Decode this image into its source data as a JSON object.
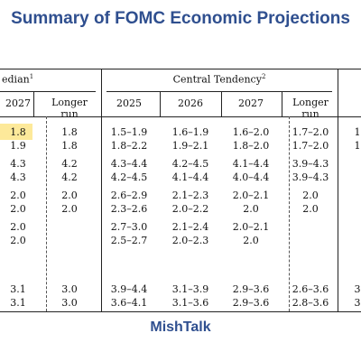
{
  "title": "Summary of FOMC Economic Projections",
  "footer": "MishTalk",
  "groups": {
    "median_partial": "edian",
    "median_sup": "1",
    "central_tendency": "Central Tendency",
    "central_sup": "2"
  },
  "columns": {
    "median": {
      "y2027": "2027",
      "longer_run_1": "Longer",
      "longer_run_2": "run"
    },
    "central": {
      "y2025": "2025",
      "y2026": "2026",
      "y2027": "2027",
      "longer_run_1": "Longer",
      "longer_run_2": "run"
    }
  },
  "rows": [
    {
      "m_first": "1.8",
      "m_2027": "1.8",
      "m_lr": "1.8",
      "ct_2025": "1.5–1.9",
      "ct_2026": "1.6–1.9",
      "ct_2027": "1.6–2.0",
      "ct_lr": "1.7–2.0",
      "edge": "1"
    },
    {
      "m_first": "",
      "m_2027": "1.9",
      "m_lr": "1.8",
      "ct_2025": "1.8–2.2",
      "ct_2026": "1.9–2.1",
      "ct_2027": "1.8–2.0",
      "ct_lr": "1.7–2.0",
      "edge": "1"
    },
    {
      "m_first": "",
      "m_2027": "4.3",
      "m_lr": "4.2",
      "ct_2025": "4.3–4.4",
      "ct_2026": "4.2–4.5",
      "ct_2027": "4.1–4.4",
      "ct_lr": "3.9–4.3",
      "edge": ""
    },
    {
      "m_first": "",
      "m_2027": "4.3",
      "m_lr": "4.2",
      "ct_2025": "4.2–4.5",
      "ct_2026": "4.1–4.4",
      "ct_2027": "4.0–4.4",
      "ct_lr": "3.9–4.3",
      "edge": ""
    },
    {
      "m_first": "",
      "m_2027": "2.0",
      "m_lr": "2.0",
      "ct_2025": "2.6–2.9",
      "ct_2026": "2.1–2.3",
      "ct_2027": "2.0–2.1",
      "ct_lr": "2.0",
      "edge": ""
    },
    {
      "m_first": "",
      "m_2027": "2.0",
      "m_lr": "2.0",
      "ct_2025": "2.3–2.6",
      "ct_2026": "2.0–2.2",
      "ct_2027": "2.0",
      "ct_lr": "2.0",
      "edge": ""
    },
    {
      "m_first": "",
      "m_2027": "2.0",
      "m_lr": "",
      "ct_2025": "2.7–3.0",
      "ct_2026": "2.1–2.4",
      "ct_2027": "2.0–2.1",
      "ct_lr": "",
      "edge": ""
    },
    {
      "m_first": "",
      "m_2027": "2.0",
      "m_lr": "",
      "ct_2025": "2.5–2.7",
      "ct_2026": "2.0–2.3",
      "ct_2027": "2.0",
      "ct_lr": "",
      "edge": ""
    },
    {
      "m_first": "",
      "m_2027": "3.1",
      "m_lr": "3.0",
      "ct_2025": "3.9–4.4",
      "ct_2026": "3.1–3.9",
      "ct_2027": "2.9–3.6",
      "ct_lr": "2.6–3.6",
      "edge": "3"
    },
    {
      "m_first": "",
      "m_2027": "3.1",
      "m_lr": "3.0",
      "ct_2025": "3.6–4.1",
      "ct_2026": "3.1–3.6",
      "ct_2027": "2.9–3.6",
      "ct_lr": "2.8–3.6",
      "edge": "3"
    }
  ]
}
